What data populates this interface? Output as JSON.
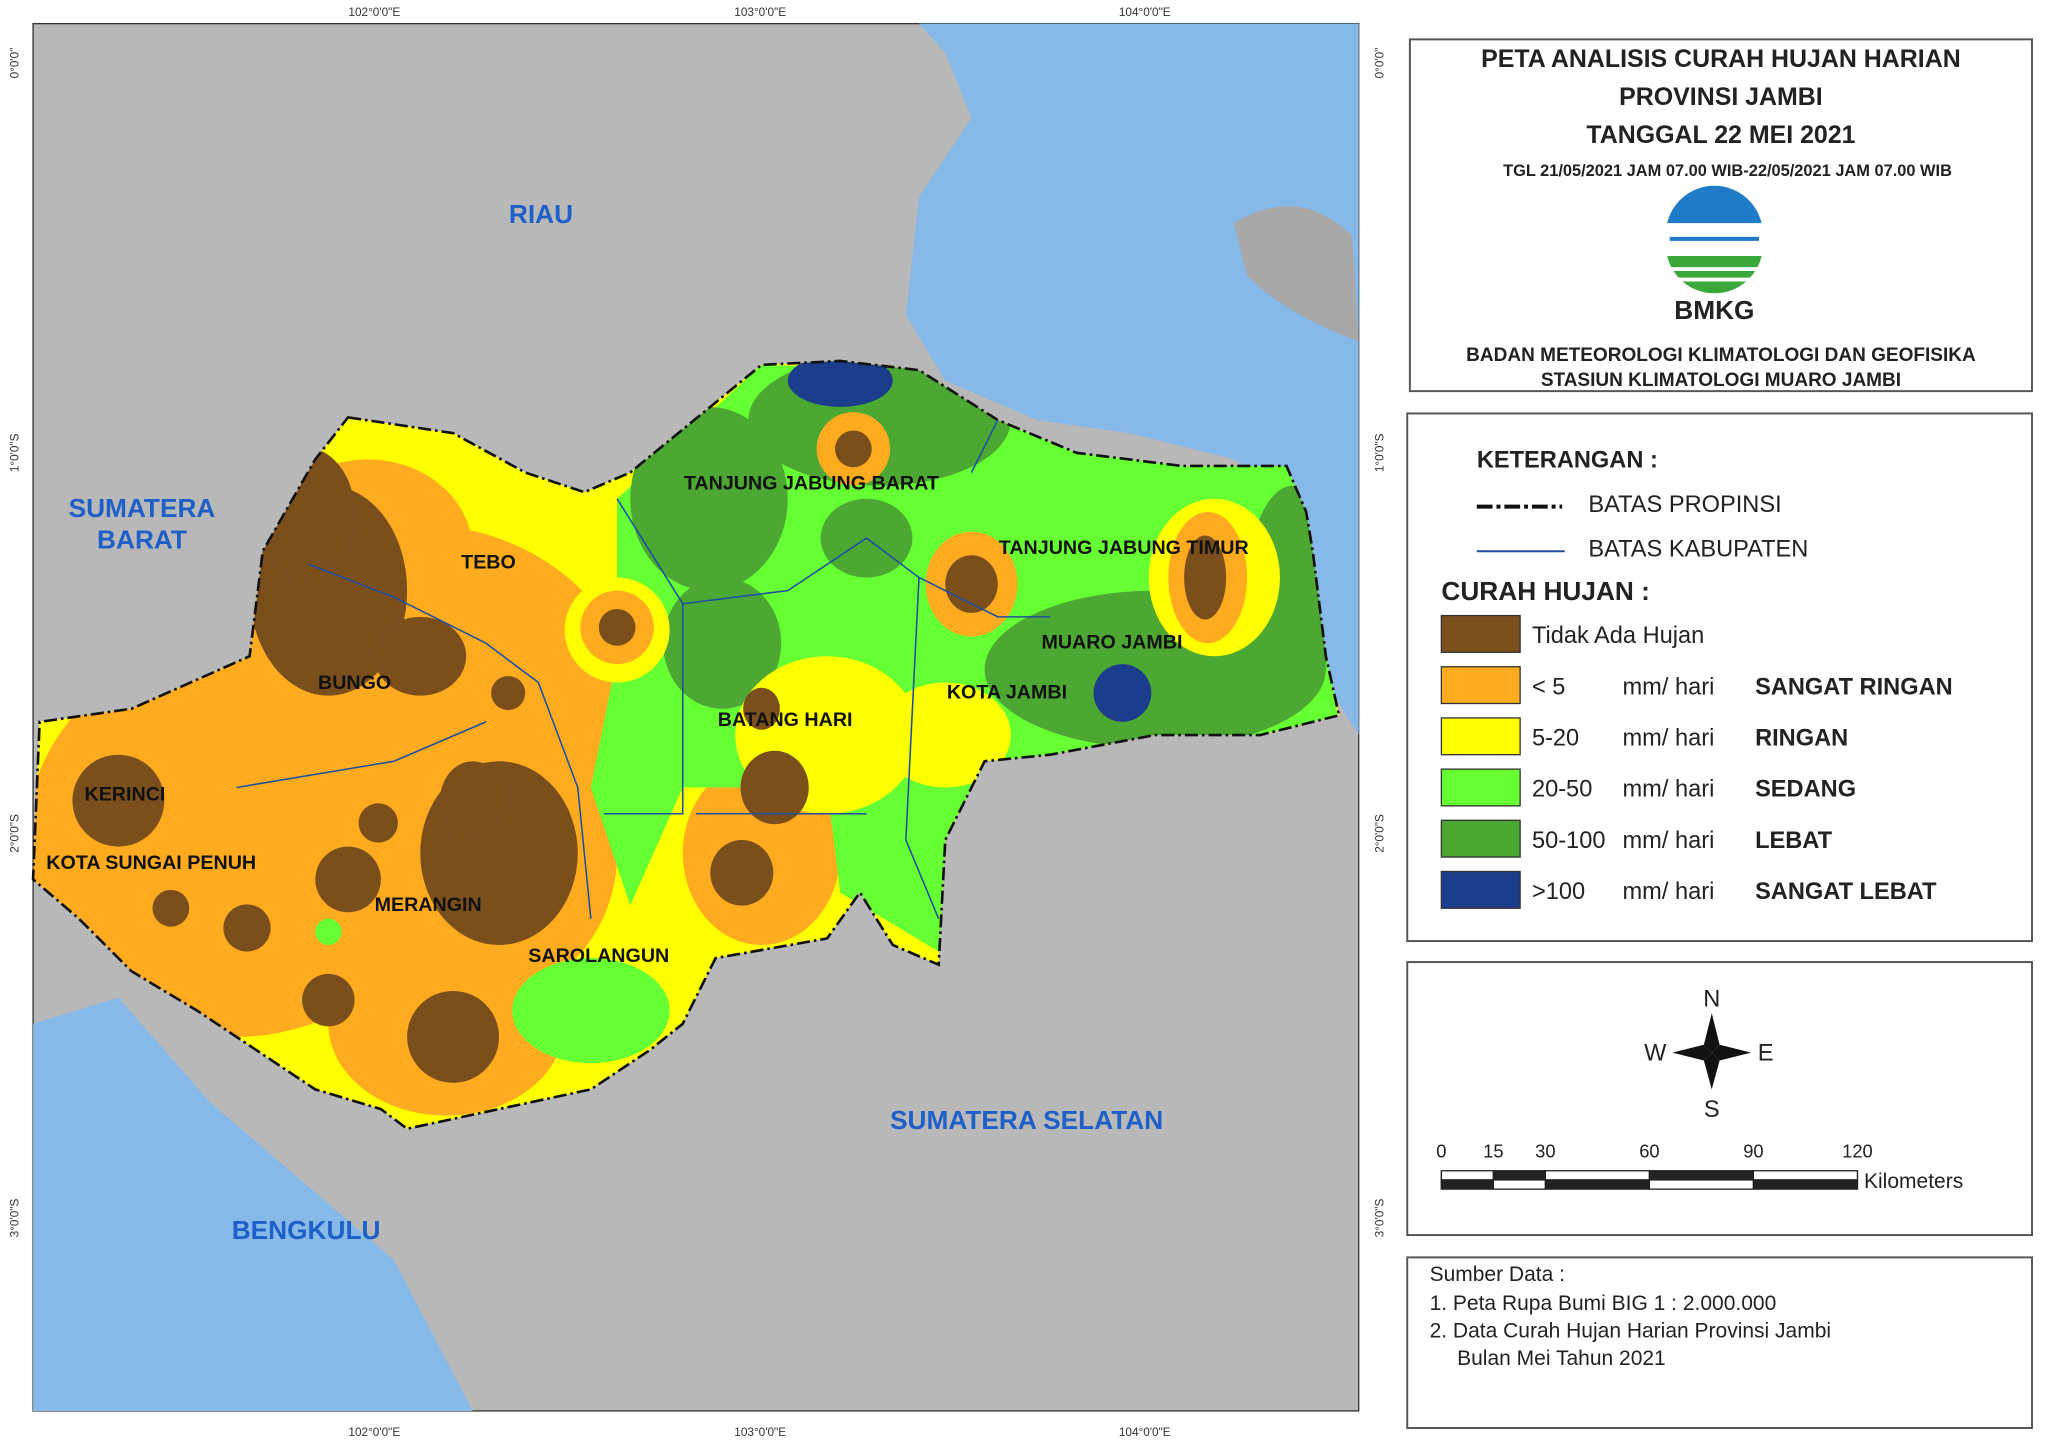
{
  "map": {
    "regions": {
      "riau": "RIAU",
      "sumatera_barat": [
        "SUMATERA",
        "BARAT"
      ],
      "sumatera_selatan": "SUMATERA SELATAN",
      "bengkulu": "BENGKULU"
    },
    "districts": {
      "tebo": "TEBO",
      "bungo": "BUNGO",
      "kerinci": "KERINCI",
      "kota_sungai_penuh": "KOTA SUNGAI PENUH",
      "merangin": "MERANGIN",
      "sarolangun": "SAROLANGUN",
      "batang_hari": "BATANG HARI",
      "tanjab_barat": "TANJUNG JABUNG BARAT",
      "tanjab_timur": "TANJUNG JABUNG TIMUR",
      "muaro_jambi": "MUARO JAMBI",
      "kota_jambi": "KOTA JAMBI"
    },
    "longitudes": [
      "102°0'0\"E",
      "103°0'0\"E",
      "104°0'0\"E"
    ],
    "latitudes": [
      "0°0'0\"",
      "1°0'0\"S",
      "2°0'0\"S",
      "3°0'0\"S"
    ]
  },
  "header": {
    "title": [
      "PETA ANALISIS CURAH HUJAN HARIAN",
      "PROVINSI JAMBI",
      "TANGGAL 22 MEI 2021"
    ],
    "period": "TGL 21/05/2021 JAM 07.00 WIB-22/05/2021 JAM 07.00 WIB",
    "logo": "BMKG",
    "agency": [
      "BADAN METEOROLOGI KLIMATOLOGI DAN GEOFISIKA",
      "STASIUN KLIMATOLOGI MUARO JAMBI"
    ]
  },
  "legend": {
    "title": "KETERANGAN :",
    "lines": [
      "BATAS PROPINSI",
      "BATAS KABUPATEN"
    ],
    "rain_title": "CURAH HUJAN :",
    "items": [
      [
        "Tidak Ada Hujan"
      ],
      [
        "< 5",
        "mm/ hari",
        "SANGAT RINGAN"
      ],
      [
        "5-20",
        "mm/ hari",
        "RINGAN"
      ],
      [
        "20-50",
        "mm/ hari",
        "SEDANG"
      ],
      [
        "50-100",
        "mm/ hari",
        "LEBAT"
      ],
      [
        ">100",
        "mm/ hari",
        "SANGAT LEBAT"
      ]
    ]
  },
  "compass": {
    "n": "N",
    "s": "S",
    "w": "W",
    "e": "E"
  },
  "scale": {
    "ticks": [
      0,
      15,
      30,
      60,
      90,
      120
    ],
    "unit": "Kilometers"
  },
  "sources": {
    "title": "Sumber Data :",
    "items": [
      "1. Peta Rupa Bumi BIG 1 : 2.000.000",
      "2. Data Curah Hujan Harian Provinsi Jambi"
    ],
    "note": "Bulan Mei Tahun 2021"
  }
}
